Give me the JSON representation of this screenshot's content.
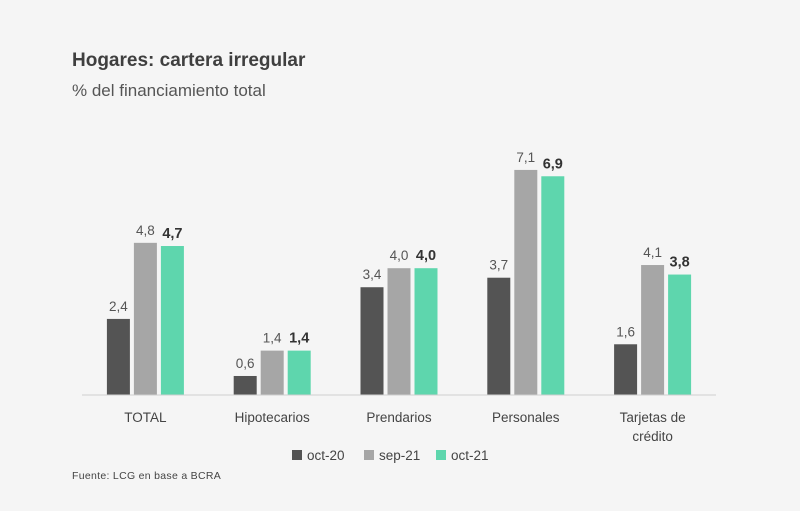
{
  "header": {
    "title": "Hogares: cartera irregular",
    "subtitle": "% del financiamiento total"
  },
  "footer": {
    "source": "Fuente: LCG en base a BCRA"
  },
  "chart_data": {
    "type": "bar",
    "categories": [
      "TOTAL",
      "Hipotecarios",
      "Prendarios",
      "Personales",
      "Tarjetas de crédito"
    ],
    "category_lines": [
      [
        "TOTAL"
      ],
      [
        "Hipotecarios"
      ],
      [
        "Prendarios"
      ],
      [
        "Personales"
      ],
      [
        "Tarjetas de",
        "crédito"
      ]
    ],
    "series": [
      {
        "name": "oct-20",
        "values": [
          2.4,
          0.6,
          3.4,
          3.7,
          1.6
        ],
        "labels": [
          "2,4",
          "0,6",
          "3,4",
          "3,7",
          "1,6"
        ],
        "color": "#545454",
        "bold": false
      },
      {
        "name": "sep-21",
        "values": [
          4.8,
          1.4,
          4.0,
          7.1,
          4.1
        ],
        "labels": [
          "4,8",
          "1,4",
          "4,0",
          "7,1",
          "4,1"
        ],
        "color": "#a6a6a6",
        "bold": false
      },
      {
        "name": "oct-21",
        "values": [
          4.7,
          1.4,
          4.0,
          6.9,
          3.8
        ],
        "labels": [
          "4,7",
          "1,4",
          "4,0",
          "6,9",
          "3,8"
        ],
        "color": "#5ed6ad",
        "bold": true
      }
    ],
    "title": "Hogares: cartera irregular",
    "subtitle": "% del financiamiento total",
    "ylim": [
      0,
      7.5
    ],
    "grid": false,
    "legend_position": "bottom-center"
  }
}
